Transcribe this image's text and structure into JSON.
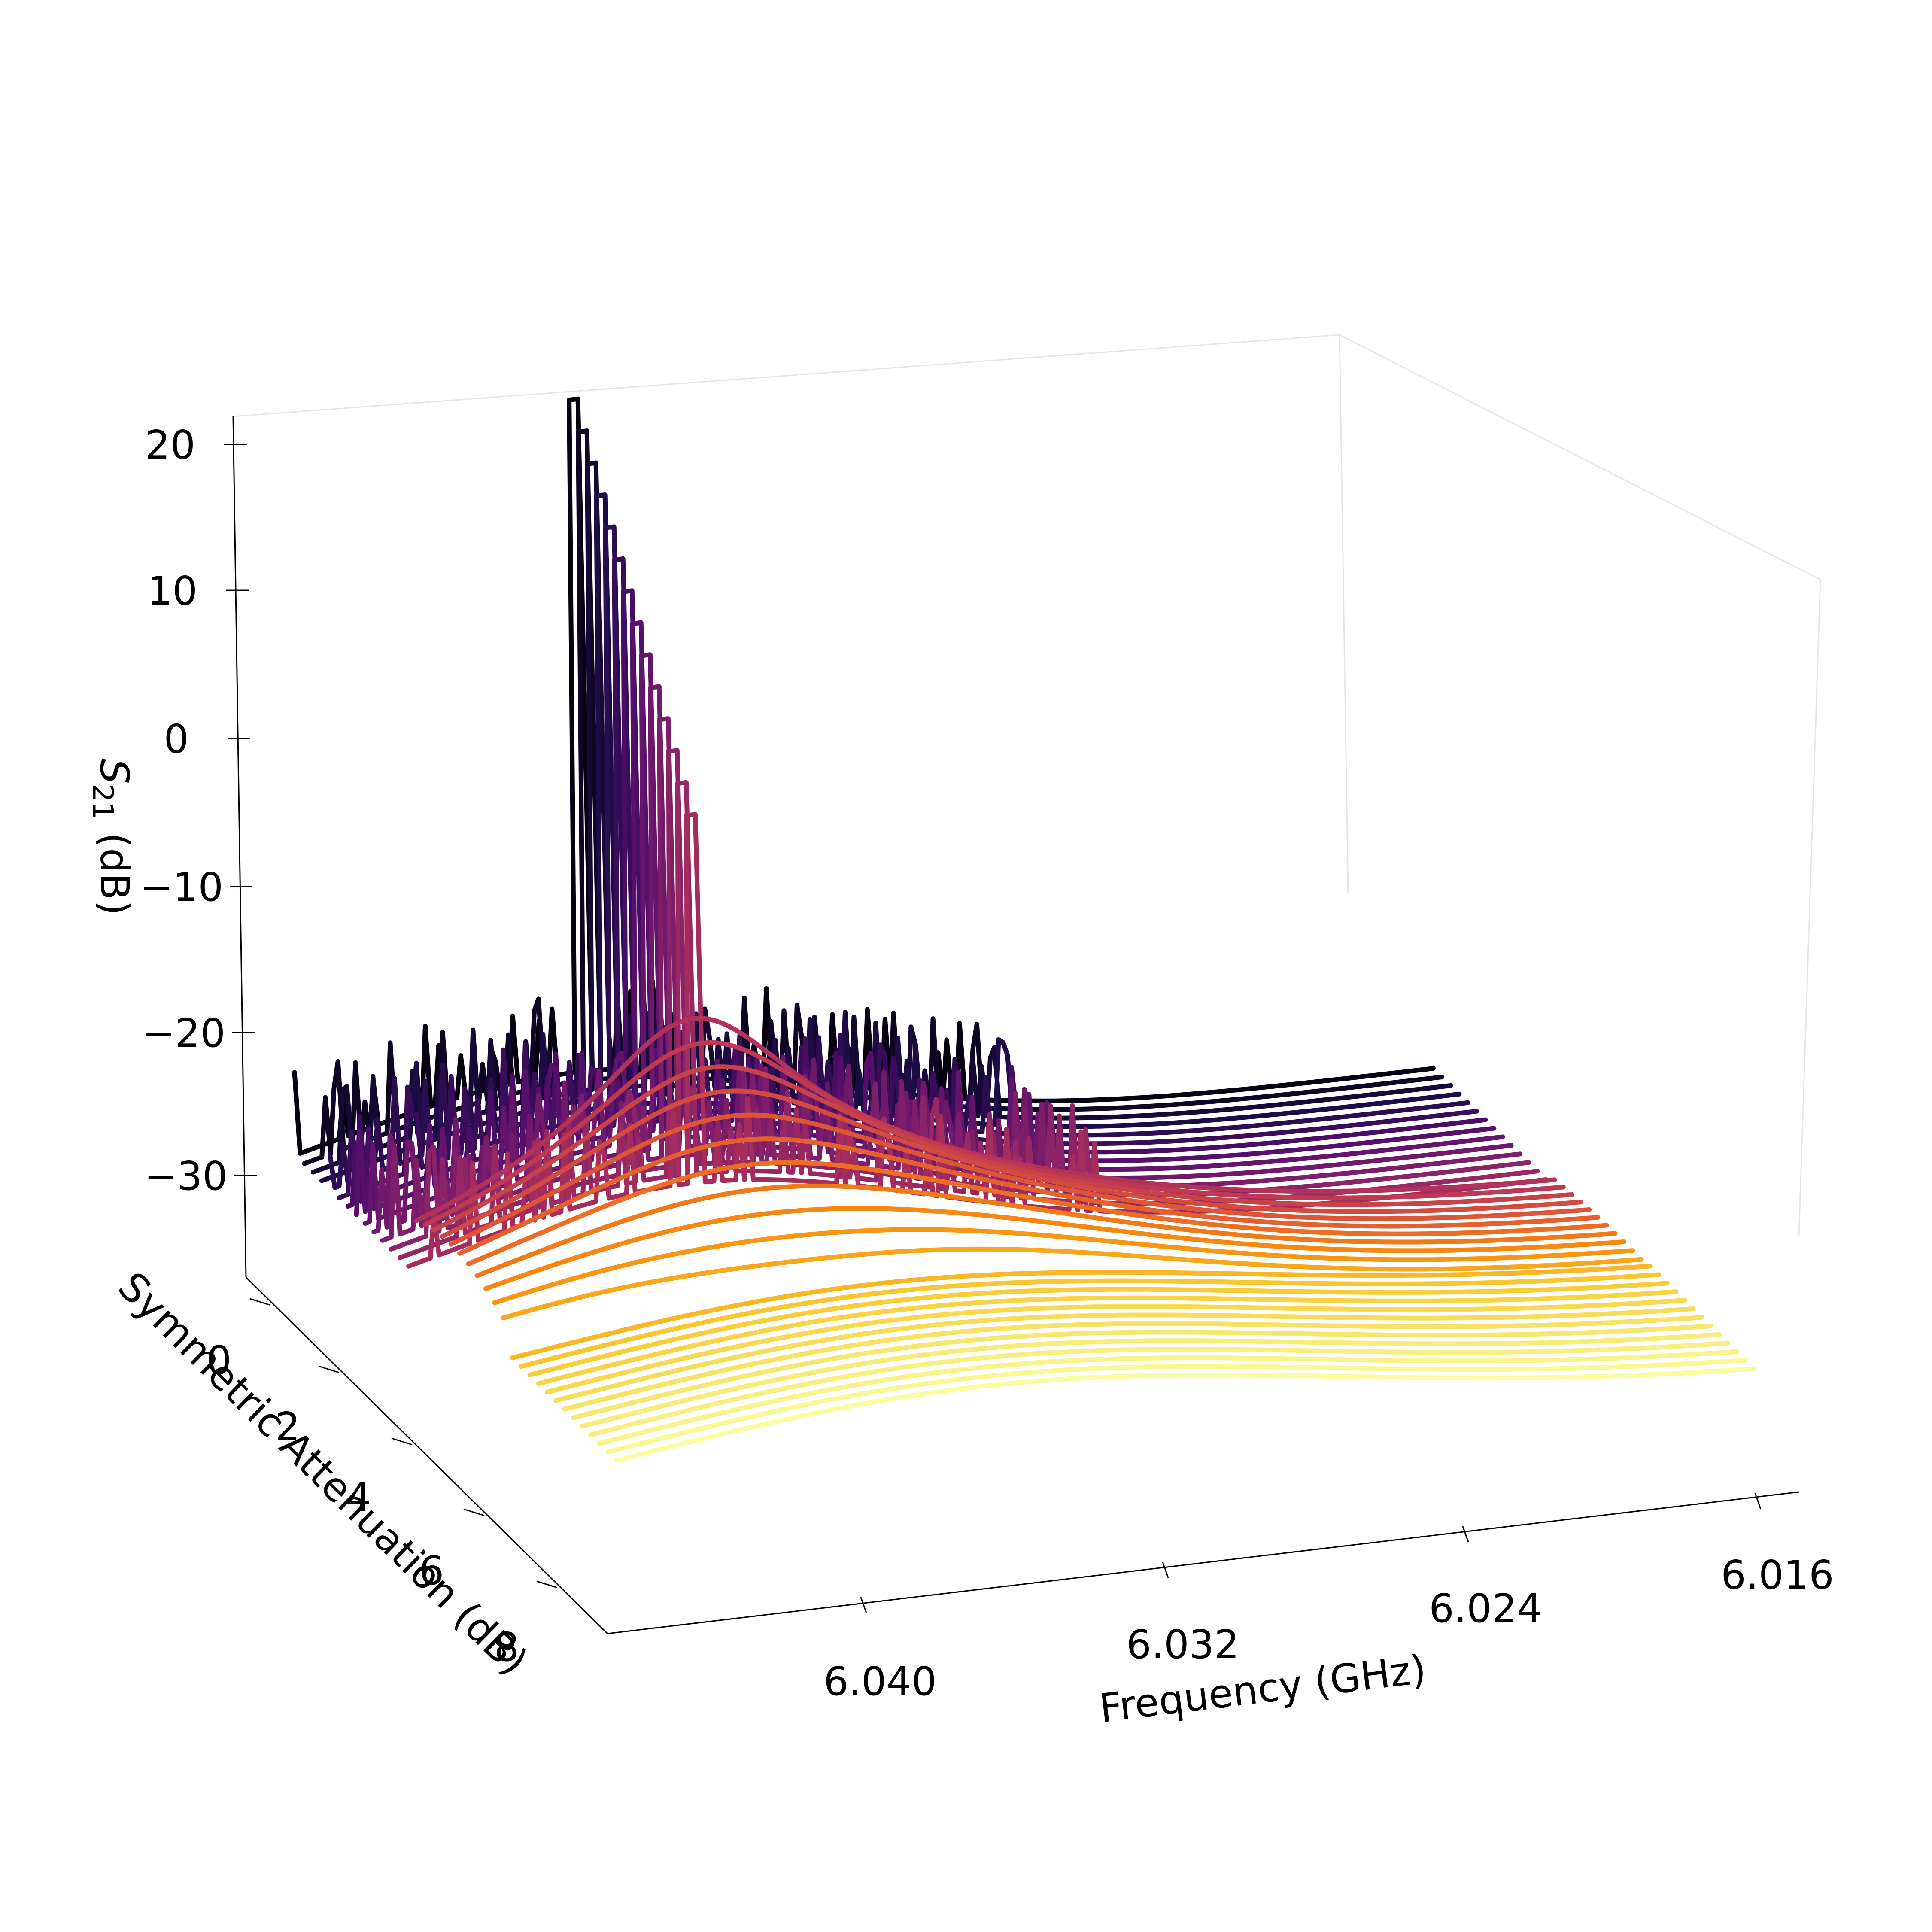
{
  "chart_data": {
    "type": "line",
    "projection": "3d",
    "colormap": "inferno",
    "xlabel": "Frequency (GHz)",
    "ylabel": "Symmetric Attenuation (dB)",
    "zlabel": "S21 (dB)",
    "zlabel_main": "S",
    "zlabel_sub": "21",
    "zlabel_rest": " (dB)",
    "xlim": [
      6.012,
      6.044
    ],
    "ylim": [
      -1,
      9
    ],
    "zlim": [
      -35,
      22
    ],
    "x_ticks": [
      6.04,
      6.032,
      6.024,
      6.016
    ],
    "x_tick_labels": [
      "6.040",
      "6.032",
      "6.024",
      "6.016"
    ],
    "y_ticks": [
      0,
      2,
      4,
      6,
      8
    ],
    "y_tick_labels": [
      "0",
      "2",
      "4",
      "6",
      "8"
    ],
    "z_ticks": [
      20,
      10,
      0,
      -10,
      -20,
      -30
    ],
    "z_tick_labels": [
      "20",
      "10",
      "0",
      "−10",
      "−20",
      "−30"
    ],
    "grid": false,
    "legend": "none",
    "attenuation_start": -0.6,
    "attenuation_step": 0.24,
    "series_count": 38,
    "resonance_center_ghz": 6.0355,
    "baseline_db": -30,
    "peak_db": 21.5,
    "description_of_series": "One S21 trace per attenuation setting; low attenuation traces show a sharp bistable resonance peak up to about +21 dB near 6.0355 GHz, high attenuation traces broaden into a smooth hump near -23 dB."
  }
}
